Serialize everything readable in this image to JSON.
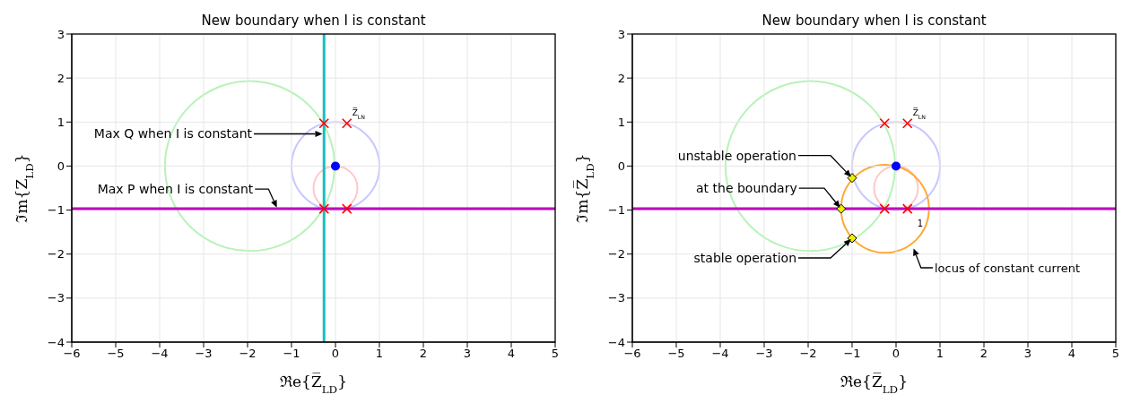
{
  "chart_data": [
    {
      "type": "scatter",
      "title": "New boundary when I is constant",
      "xlabel": "ℜe{Z̅$_{LD}$}",
      "ylabel": "ℑm{Z$_{LD}$}",
      "xlim": [
        -6,
        5
      ],
      "ylim": [
        -4,
        3
      ],
      "xticks": [
        -6,
        -5,
        -4,
        -3,
        -2,
        -1,
        0,
        1,
        2,
        3,
        4,
        5
      ],
      "yticks": [
        -4,
        -3,
        -2,
        -1,
        0,
        1,
        2,
        3
      ],
      "grid": true,
      "ref_lines": [
        {
          "axis": "x",
          "value": -0.26,
          "color": "#17bfc0"
        },
        {
          "axis": "y",
          "value": -0.97,
          "color": "#bf00bf"
        }
      ],
      "annotations": [
        "Z̅$_{LN}$",
        "Max Q when I is constant",
        "Max P when I is constant"
      ],
      "series": [
        {
          "type": "scatter",
          "color": "#ff0000",
          "marker": "cross",
          "x": [
            -0.26,
            0.26,
            -0.26,
            0.26
          ],
          "values": [
            0.97,
            0.97,
            -0.97,
            -0.97
          ]
        },
        {
          "type": "scatter",
          "color": "#0000ff",
          "marker": "circle",
          "x": [
            0
          ],
          "values": [
            0
          ]
        }
      ]
    },
    {
      "type": "scatter",
      "title": "New boundary when I is constant",
      "xlabel": "ℜe{Z̅$_{LD}$}",
      "ylabel": "ℑm{Z̅$_{LD}$}",
      "xlim": [
        -6,
        5
      ],
      "ylim": [
        -4,
        3
      ],
      "xticks": [
        -6,
        -5,
        -4,
        -3,
        -2,
        -1,
        0,
        1,
        2,
        3,
        4,
        5
      ],
      "yticks": [
        -4,
        -3,
        -2,
        -1,
        0,
        1,
        2,
        3
      ],
      "grid": true,
      "ref_lines": [
        {
          "axis": "y",
          "value": -0.97,
          "color": "#bf00bf"
        }
      ],
      "annotations": [
        "Z̅$_{LN}$",
        "unstable operation",
        "at the boundary",
        "stable operation",
        "1",
        "locus of constant current"
      ],
      "series": [
        {
          "type": "scatter",
          "color": "#ff0000",
          "marker": "cross",
          "x": [
            -0.26,
            0.26,
            -0.26,
            0.26
          ],
          "values": [
            0.97,
            0.97,
            -0.97,
            -0.97
          ]
        },
        {
          "type": "scatter",
          "color": "#0000ff",
          "marker": "circle",
          "x": [
            0
          ],
          "values": [
            0
          ]
        },
        {
          "type": "scatter",
          "color": "#f0f000",
          "marker": "diamond",
          "x": [
            -1,
            -1.25,
            -1
          ],
          "values": [
            -0.27,
            -0.97,
            -1.64
          ]
        }
      ]
    }
  ]
}
